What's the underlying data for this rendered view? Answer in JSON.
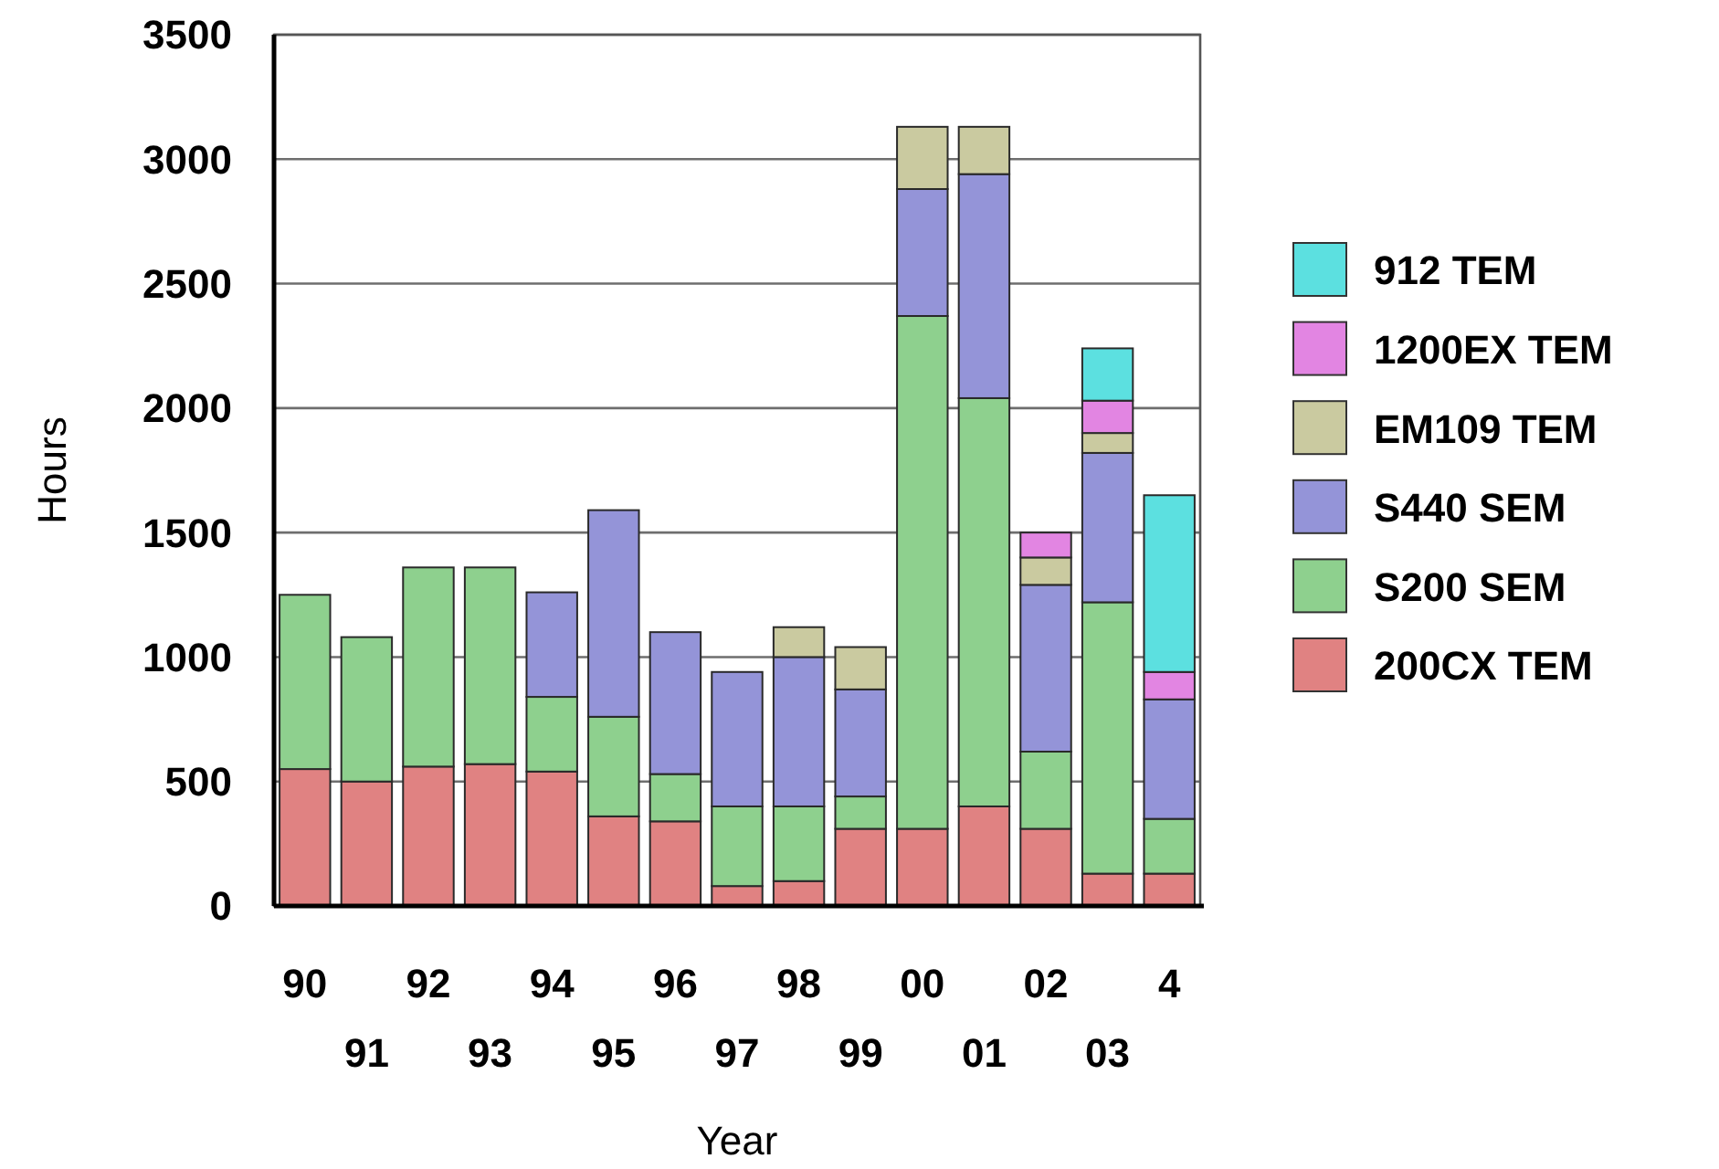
{
  "chart_data": {
    "type": "bar",
    "stacked": true,
    "xlabel": "Year",
    "ylabel": "Hours",
    "categories": [
      "90",
      "91",
      "92",
      "93",
      "94",
      "95",
      "96",
      "97",
      "98",
      "99",
      "00",
      "01",
      "02",
      "03",
      "4"
    ],
    "series": [
      {
        "name": "200CX TEM",
        "color": "#e08282",
        "values": [
          550,
          500,
          560,
          570,
          540,
          360,
          340,
          80,
          100,
          310,
          310,
          400,
          310,
          130,
          130
        ]
      },
      {
        "name": "S200 SEM",
        "color": "#8ed08e",
        "values": [
          700,
          580,
          800,
          790,
          300,
          400,
          190,
          320,
          300,
          130,
          2060,
          1640,
          310,
          1090,
          220
        ]
      },
      {
        "name": "S440 SEM",
        "color": "#9494d8",
        "values": [
          null,
          null,
          null,
          null,
          420,
          830,
          570,
          540,
          600,
          430,
          510,
          900,
          670,
          600,
          480
        ]
      },
      {
        "name": "EM109 TEM",
        "color": "#cacaa0",
        "values": [
          null,
          null,
          null,
          null,
          null,
          null,
          null,
          null,
          120,
          170,
          250,
          190,
          110,
          80,
          null
        ]
      },
      {
        "name": "1200EX TEM",
        "color": "#e285e2",
        "values": [
          null,
          null,
          null,
          null,
          null,
          null,
          null,
          null,
          null,
          null,
          null,
          null,
          100,
          130,
          110
        ]
      },
      {
        "name": "912 TEM",
        "color": "#5ce0e0",
        "values": [
          null,
          null,
          null,
          null,
          null,
          null,
          null,
          null,
          null,
          null,
          null,
          null,
          null,
          210,
          710
        ]
      }
    ],
    "ylim": [
      0,
      3500
    ],
    "yticks": [
      0,
      500,
      1000,
      1500,
      2000,
      2500,
      3000,
      3500
    ],
    "grid": "y",
    "legend": "right"
  }
}
